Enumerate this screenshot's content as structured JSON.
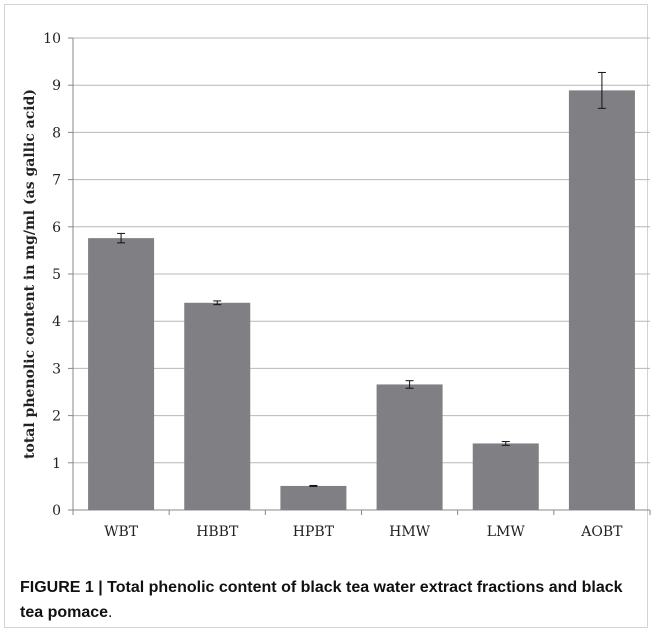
{
  "chart_data": {
    "type": "bar",
    "categories": [
      "WBT",
      "HBBT",
      "HPBT",
      "HMW",
      "LMW",
      "AOBT"
    ],
    "values": [
      5.76,
      4.39,
      0.51,
      2.66,
      1.41,
      8.89
    ],
    "errors": [
      0.1,
      0.04,
      0.01,
      0.08,
      0.04,
      0.38
    ],
    "ylabel": "total phenolic content in mg/ml (as gallic acid)",
    "xlabel": "",
    "ylim": [
      0,
      10
    ],
    "yticks": [
      0,
      1,
      2,
      3,
      4,
      5,
      6,
      7,
      8,
      9,
      10
    ],
    "grid": true,
    "legend": "none",
    "bar_color": "#7f7f84",
    "grid_color": "#b8b8b8"
  },
  "caption": {
    "label": "FIGURE 1 | ",
    "text": "Total phenolic content of black tea water extract fractions and black tea pomace",
    "period": "."
  }
}
